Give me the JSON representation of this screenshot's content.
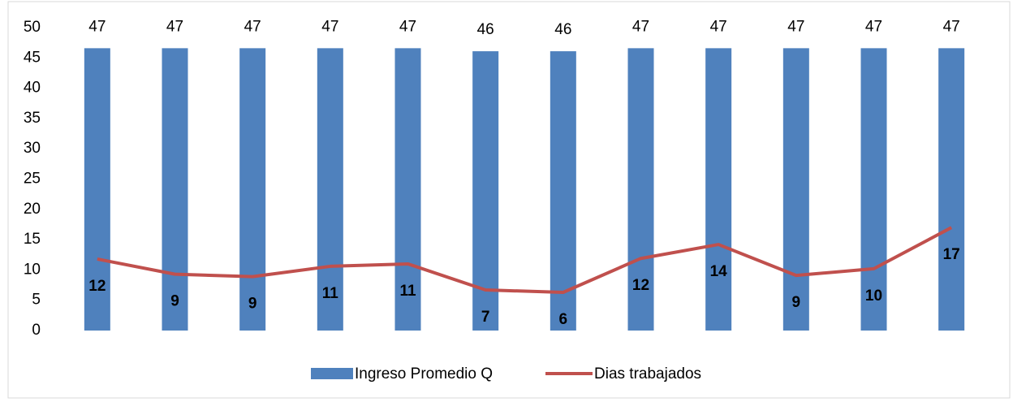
{
  "chart_data": {
    "type": "bar-line",
    "categories": [
      null,
      null,
      null,
      null,
      null,
      null,
      null,
      null,
      null,
      null,
      null,
      null
    ],
    "series": [
      {
        "name": "Ingreso Promedio Q",
        "type": "bar",
        "color": "#4f81bd",
        "values": [
          46.6,
          46.6,
          46.6,
          46.6,
          46.6,
          46.1,
          46.1,
          46.6,
          46.6,
          46.6,
          46.6,
          46.6
        ],
        "value_labels": [
          "47",
          "47",
          "47",
          "47",
          "47",
          "46",
          "46",
          "47",
          "47",
          "47",
          "47",
          "47"
        ]
      },
      {
        "name": "Dias trabajados",
        "type": "line",
        "color": "#c0504d",
        "values": [
          11.8,
          9.3,
          8.9,
          10.6,
          11.0,
          6.7,
          6.3,
          11.9,
          14.2,
          9.1,
          10.2,
          17.0
        ],
        "value_labels": [
          "12",
          "9",
          "9",
          "11",
          "11",
          "7",
          "6",
          "12",
          "14",
          "9",
          "10",
          "17"
        ]
      }
    ],
    "ylim": [
      0,
      50
    ],
    "yticks": [
      0,
      5,
      10,
      15,
      20,
      25,
      30,
      35,
      40,
      45,
      50
    ],
    "grid": false,
    "legend": "bottom"
  }
}
